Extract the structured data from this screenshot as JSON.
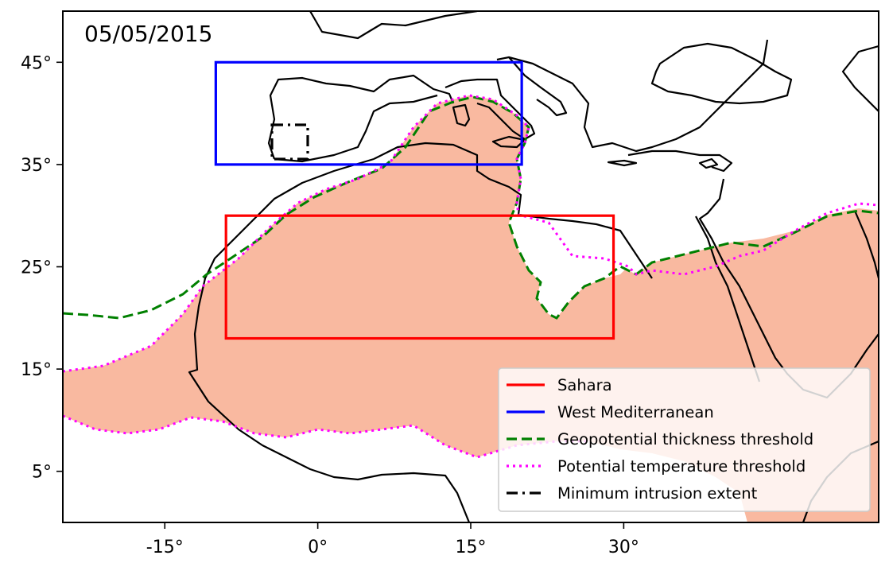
{
  "map": {
    "date": "05/05/2015",
    "projection": "PlateCarree",
    "lon_range": [
      -25,
      55
    ],
    "lat_range": [
      0,
      50
    ],
    "x_ticks": [
      {
        "value": -15,
        "label": "-15°"
      },
      {
        "value": 0,
        "label": "0°"
      },
      {
        "value": 15,
        "label": "15°"
      },
      {
        "value": 30,
        "label": "30°"
      }
    ],
    "y_ticks": [
      {
        "value": 45,
        "label": "45°"
      },
      {
        "value": 35,
        "label": "35°"
      },
      {
        "value": 25,
        "label": "25°"
      },
      {
        "value": 15,
        "label": "15°"
      },
      {
        "value": 5,
        "label": "5°"
      }
    ],
    "regions": [
      {
        "name": "Sahara",
        "lon": [
          -9,
          29
        ],
        "lat": [
          18,
          30
        ],
        "color": "#ff0000"
      },
      {
        "name": "West Mediterranean",
        "lon": [
          -10,
          20
        ],
        "lat": [
          35,
          45
        ],
        "color": "#0000ff"
      }
    ],
    "intrusion_fill_color": "#f9b9a0",
    "legend": [
      {
        "label": "Sahara",
        "color": "#ff0000",
        "style": "solid"
      },
      {
        "label": "West Mediterranean",
        "color": "#0000ff",
        "style": "solid"
      },
      {
        "label": "Geopotential thickness threshold",
        "color": "#008000",
        "style": "dashed"
      },
      {
        "label": "Potential temperature threshold",
        "color": "#ff00ff",
        "style": "dotted"
      },
      {
        "label": "Minimum intrusion extent",
        "color": "#000000",
        "style": "dashdot"
      }
    ]
  }
}
